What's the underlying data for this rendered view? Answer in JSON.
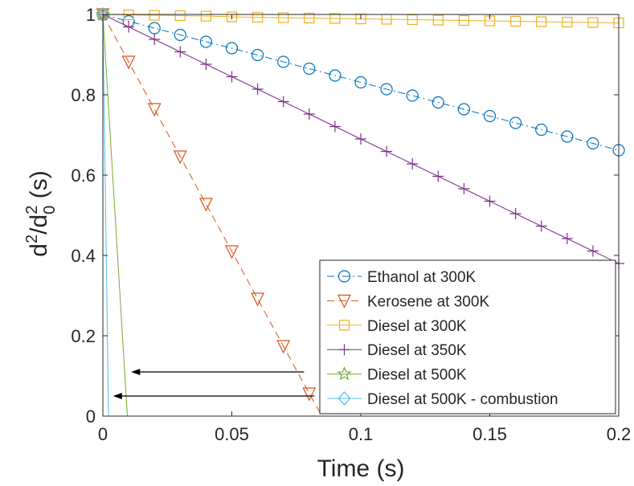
{
  "chart_data": {
    "type": "line",
    "xlabel": "Time (s)",
    "ylabel_parts": {
      "d": "d",
      "sup1": "2",
      "slash_d": "/d",
      "sub0": "0",
      "sup2": "2",
      "unit": " (s)"
    },
    "xlim": [
      0,
      0.2
    ],
    "ylim": [
      0,
      1
    ],
    "xticks": [
      0,
      0.05,
      0.1,
      0.15,
      0.2
    ],
    "xtick_labels": [
      "0",
      "0.05",
      "0.1",
      "0.15",
      "0.2"
    ],
    "yticks": [
      0,
      0.2,
      0.4,
      0.6,
      0.8,
      1
    ],
    "ytick_labels": [
      "0",
      "0.2",
      "0.4",
      "0.6",
      "0.8",
      "1"
    ],
    "grid": false,
    "legend_position": "bottom-right",
    "series": [
      {
        "name": "Ethanol at 300K",
        "color": "#0072BD",
        "marker": "circle",
        "line": "dashdot",
        "x": [
          0,
          0.01,
          0.02,
          0.03,
          0.04,
          0.05,
          0.06,
          0.07,
          0.08,
          0.09,
          0.1,
          0.11,
          0.12,
          0.13,
          0.14,
          0.15,
          0.16,
          0.17,
          0.18,
          0.19,
          0.2
        ],
        "y": [
          1.0,
          0.983,
          0.966,
          0.949,
          0.932,
          0.916,
          0.899,
          0.882,
          0.865,
          0.848,
          0.831,
          0.814,
          0.798,
          0.781,
          0.764,
          0.747,
          0.73,
          0.713,
          0.696,
          0.679,
          0.662
        ]
      },
      {
        "name": "Kerosene at 300K",
        "color": "#D95319",
        "marker": "triangle-down",
        "line": "dashed",
        "x": [
          0,
          0.01,
          0.02,
          0.03,
          0.04,
          0.05,
          0.06,
          0.07,
          0.08,
          0.085
        ],
        "y": [
          1.0,
          0.882,
          0.764,
          0.646,
          0.528,
          0.41,
          0.292,
          0.174,
          0.056,
          0
        ]
      },
      {
        "name": "Diesel at 300K",
        "color": "#EDB120",
        "marker": "square",
        "line": "solid",
        "x": [
          0,
          0.01,
          0.02,
          0.03,
          0.04,
          0.05,
          0.06,
          0.07,
          0.08,
          0.09,
          0.1,
          0.11,
          0.12,
          0.13,
          0.14,
          0.15,
          0.16,
          0.17,
          0.18,
          0.19,
          0.2
        ],
        "y": [
          1.0,
          0.999,
          0.998,
          0.997,
          0.996,
          0.994,
          0.993,
          0.992,
          0.991,
          0.99,
          0.989,
          0.988,
          0.987,
          0.986,
          0.985,
          0.984,
          0.983,
          0.982,
          0.981,
          0.98,
          0.979
        ]
      },
      {
        "name": "Diesel at 350K",
        "color": "#7E2F8E",
        "marker": "plus",
        "line": "solid",
        "x": [
          0,
          0.01,
          0.02,
          0.03,
          0.04,
          0.05,
          0.06,
          0.07,
          0.08,
          0.09,
          0.1,
          0.11,
          0.12,
          0.13,
          0.14,
          0.15,
          0.16,
          0.17,
          0.18,
          0.19,
          0.2
        ],
        "y": [
          1.0,
          0.969,
          0.938,
          0.907,
          0.876,
          0.845,
          0.814,
          0.783,
          0.752,
          0.721,
          0.69,
          0.659,
          0.628,
          0.597,
          0.566,
          0.535,
          0.504,
          0.473,
          0.442,
          0.411,
          0.38
        ]
      },
      {
        "name": "Diesel at 500K",
        "color": "#77AC30",
        "marker": "star",
        "line": "solid",
        "x": [
          0,
          0.0095
        ],
        "y": [
          1.0,
          0
        ]
      },
      {
        "name": "Diesel at 500K - combustion",
        "color": "#4DBEEE",
        "marker": "diamond",
        "line": "solid",
        "x": [
          0,
          0.0022
        ],
        "y": [
          1.0,
          0
        ]
      }
    ],
    "annotations": [
      {
        "type": "arrow",
        "from": [
          0.078,
          0.11
        ],
        "to": [
          0.011,
          0.11
        ]
      },
      {
        "type": "arrow",
        "from": [
          0.082,
          0.05
        ],
        "to": [
          0.004,
          0.05
        ]
      }
    ]
  }
}
